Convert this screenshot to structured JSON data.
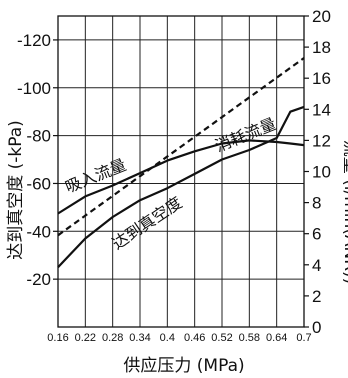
{
  "chart_data": {
    "type": "line",
    "xlabel": "供应压力 (MPa)",
    "ylabel_left": "达到真空度 (-kPa)",
    "ylabel_right": "流量 (l/min(ANR))",
    "x_ticks": [
      "0.16",
      "0.22",
      "0.28",
      "0.34",
      "0.4",
      "0.46",
      "0.52",
      "0.58",
      "0.64",
      "0.7"
    ],
    "xlim": [
      0.16,
      0.7
    ],
    "y_left_ticks": [
      "-120",
      "-100",
      "-80",
      "-60",
      "-40",
      "-20"
    ],
    "ylim_left": [
      0,
      -120
    ],
    "y_right_ticks": [
      "20",
      "18",
      "16",
      "14",
      "12",
      "10",
      "8",
      "6",
      "4",
      "2",
      "0"
    ],
    "ylim_right": [
      0,
      20
    ],
    "grid": true,
    "series": [
      {
        "name": "吸入流量",
        "axis": "right",
        "style": "solid",
        "x": [
          0.16,
          0.22,
          0.28,
          0.34,
          0.4,
          0.46,
          0.52,
          0.58,
          0.64,
          0.67,
          0.7
        ],
        "values": [
          7.3,
          8.4,
          9.1,
          9.9,
          10.7,
          11.3,
          11.8,
          12.0,
          11.9,
          11.8,
          11.7
        ]
      },
      {
        "name": "达到真空度",
        "axis": "left",
        "style": "solid",
        "x": [
          0.16,
          0.22,
          0.28,
          0.34,
          0.4,
          0.46,
          0.52,
          0.58,
          0.64,
          0.67,
          0.7
        ],
        "values": [
          -25,
          -37,
          -46,
          -53,
          -58,
          -64,
          -70,
          -74,
          -79,
          -90,
          -92
        ]
      },
      {
        "name": "消耗流量",
        "axis": "right",
        "style": "dashed",
        "x": [
          0.16,
          0.7
        ],
        "values": [
          5.9,
          17.3
        ]
      }
    ],
    "labels": {
      "suction": "吸入流量",
      "consumption": "消耗流量",
      "vacuum": "达到真空度"
    }
  }
}
